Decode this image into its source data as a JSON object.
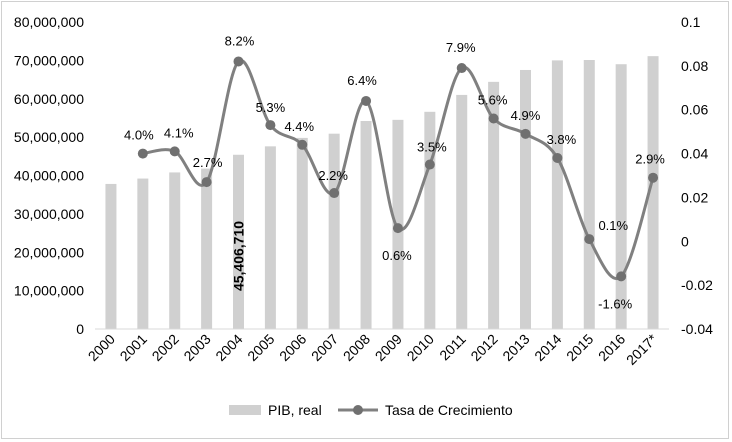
{
  "chart_data": {
    "type": "bar+line",
    "categories": [
      "2000",
      "2001",
      "2002",
      "2003",
      "2004",
      "2005",
      "2006",
      "2007",
      "2008",
      "2009",
      "2010",
      "2011",
      "2012",
      "2013",
      "2014",
      "2015",
      "2016",
      "2017*"
    ],
    "series": [
      {
        "name": "PIB, real",
        "type": "bar",
        "axis": "left",
        "values": [
          37800000,
          39200000,
          40800000,
          41800000,
          45406710,
          47600000,
          49800000,
          50900000,
          54200000,
          54500000,
          56600000,
          61000000,
          64400000,
          67500000,
          70000000,
          70100000,
          69000000,
          71100000
        ],
        "data_labels": [
          null,
          null,
          null,
          null,
          "45,406,710",
          null,
          null,
          null,
          null,
          null,
          null,
          null,
          null,
          null,
          null,
          null,
          null,
          null
        ]
      },
      {
        "name": "Tasa de Crecimiento",
        "type": "line",
        "axis": "right",
        "values": [
          null,
          0.04,
          0.041,
          0.027,
          0.082,
          0.053,
          0.044,
          0.022,
          0.064,
          0.006,
          0.035,
          0.079,
          0.056,
          0.049,
          0.038,
          0.001,
          -0.016,
          0.029
        ],
        "data_labels": [
          null,
          "4.0%",
          "4.1%",
          "2.7%",
          "8.2%",
          "5.3%",
          "4.4%",
          "2.2%",
          "6.4%",
          "0.6%",
          "3.5%",
          "7.9%",
          "5.6%",
          "4.9%",
          "3.8%",
          "0.1%",
          "-1.6%",
          "2.9%"
        ]
      }
    ],
    "y_left": {
      "lim": [
        0,
        80000000
      ],
      "ticks": [
        0,
        10000000,
        20000000,
        30000000,
        40000000,
        50000000,
        60000000,
        70000000,
        80000000
      ],
      "tick_labels": [
        "0",
        "10,000,000",
        "20,000,000",
        "30,000,000",
        "40,000,000",
        "50,000,000",
        "60,000,000",
        "70,000,000",
        "80,000,000"
      ]
    },
    "y_right": {
      "lim": [
        -0.04,
        0.1
      ],
      "ticks": [
        -0.04,
        -0.02,
        0,
        0.02,
        0.04,
        0.06,
        0.08,
        0.1
      ],
      "tick_labels": [
        "-0.04",
        "-0.02",
        "0",
        "0.02",
        "0.04",
        "0.06",
        "0.08",
        "0.1"
      ]
    },
    "grid": false,
    "legend_position": "bottom",
    "colors": {
      "bar": "#d0d0d0",
      "line": "#808080",
      "marker": "#707070",
      "text": "#000000"
    }
  }
}
